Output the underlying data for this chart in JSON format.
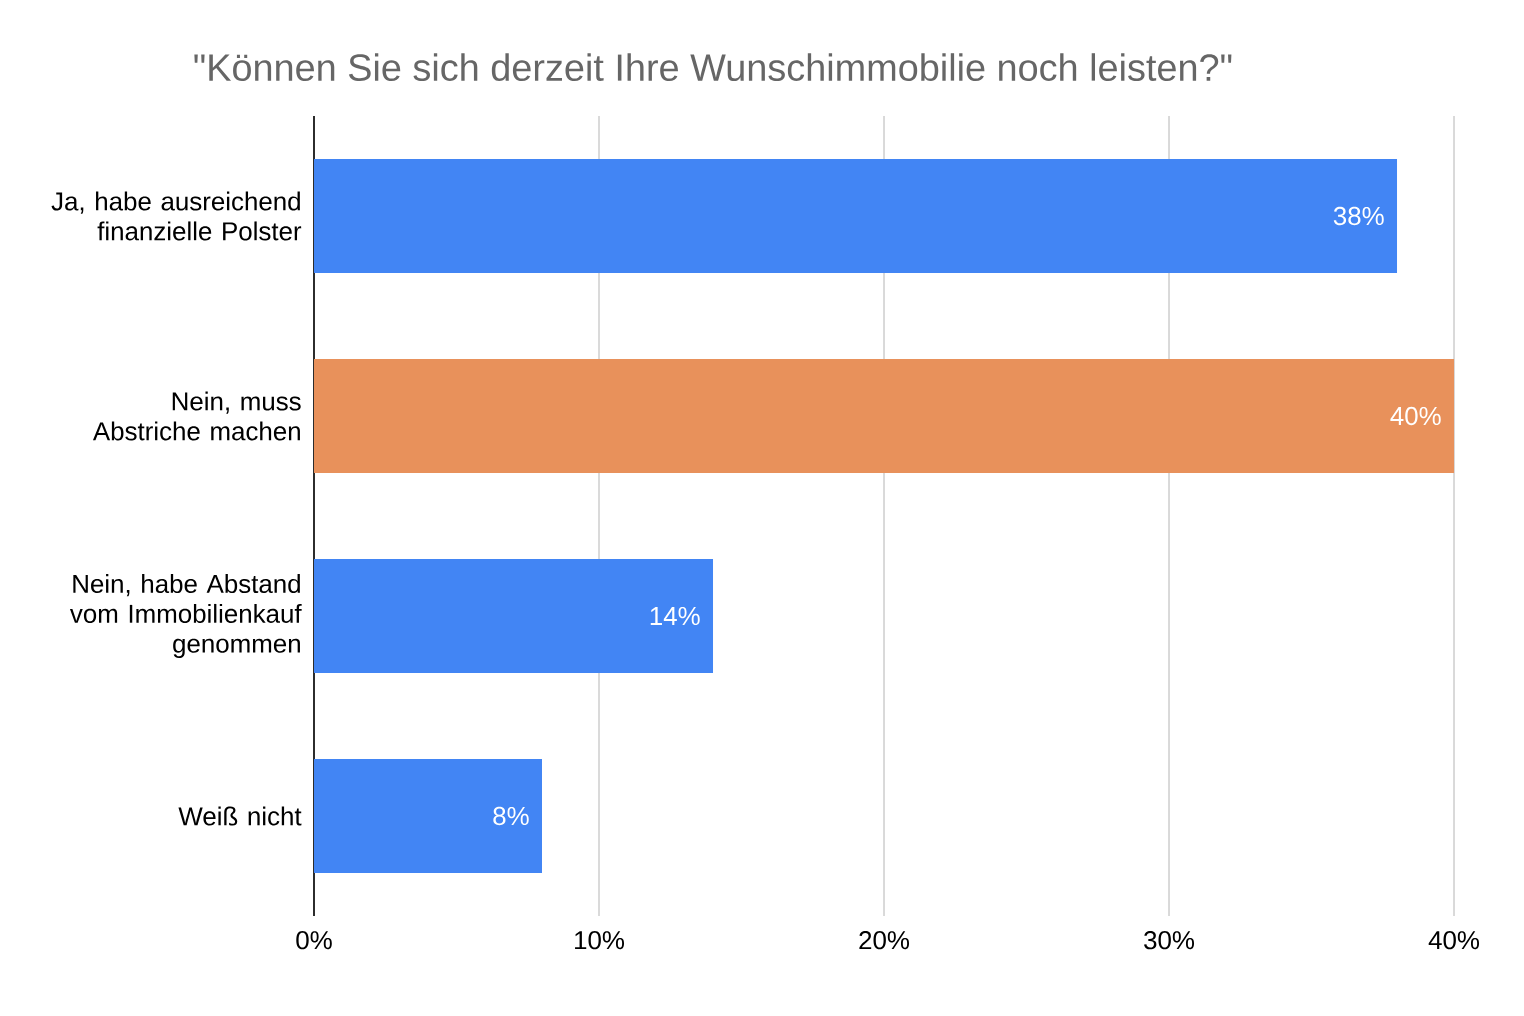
{
  "chart_data": {
    "type": "bar",
    "orientation": "horizontal",
    "title": "\"Können Sie sich derzeit Ihre Wunschimmobilie noch leisten?\"",
    "categories": [
      "Ja, habe ausreichend finanzielle Polster",
      "Nein, muss Abstriche machen",
      "Nein, habe Abstand vom Immobilienkauf genommen",
      "Weiß nicht"
    ],
    "values": [
      38,
      40,
      14,
      8
    ],
    "colors": [
      "#4285f4",
      "#e8915b",
      "#4285f4",
      "#4285f4"
    ],
    "value_labels": [
      "38%",
      "40%",
      "14%",
      "8%"
    ],
    "xlim": [
      0,
      40
    ],
    "xticks": [
      {
        "value": 0,
        "label": "0%"
      },
      {
        "value": 10,
        "label": "10%"
      },
      {
        "value": 20,
        "label": "20%"
      },
      {
        "value": 30,
        "label": "30%"
      },
      {
        "value": 40,
        "label": "40%"
      }
    ],
    "grid": "x"
  }
}
